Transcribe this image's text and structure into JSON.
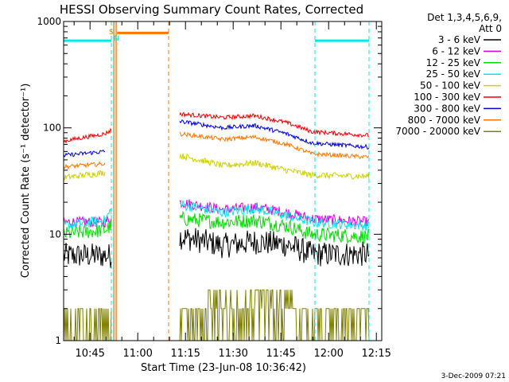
{
  "chart_data": {
    "type": "line",
    "title": "HESSI Observing Summary Count Rates, Corrected",
    "xlabel": "Start Time (23-Jun-08 10:36:42)",
    "ylabel": "Corrected Count Rate (s⁻¹ detector⁻¹)",
    "yscale": "log",
    "ylim": [
      1,
      1000
    ],
    "xlim_minutes": [
      0,
      100
    ],
    "yticks": [
      {
        "label": "1",
        "value": 1
      },
      {
        "label": "10",
        "value": 10
      },
      {
        "label": "100",
        "value": 100
      },
      {
        "label": "1000",
        "value": 1000
      }
    ],
    "xticks": [
      {
        "label": "10:45",
        "t": 8.3
      },
      {
        "label": "11:00",
        "t": 23.3
      },
      {
        "label": "11:15",
        "t": 38.3
      },
      {
        "label": "11:30",
        "t": 53.3
      },
      {
        "label": "11:45",
        "t": 68.3
      },
      {
        "label": "12:00",
        "t": 83.3
      },
      {
        "label": "12:15",
        "t": 98.3
      }
    ],
    "legend": {
      "header": [
        "Det 1,3,4,5,6,9,",
        "Att 0"
      ],
      "position": "right"
    },
    "series": [
      {
        "name": "3 - 6 keV",
        "color": "#000000",
        "pre": [
          [
            0,
            6.3
          ],
          [
            15,
            6.3
          ]
        ],
        "post": [
          [
            36.5,
            9.5
          ],
          [
            50,
            7.8
          ],
          [
            60,
            8.5
          ],
          [
            70,
            8.0
          ],
          [
            78,
            6.5
          ],
          [
            96,
            6.5
          ]
        ],
        "noise": 0.12
      },
      {
        "name": "6 - 12 keV",
        "color": "#dd00dd",
        "pre": [
          [
            0,
            13
          ],
          [
            13,
            13
          ],
          [
            15,
            14
          ]
        ],
        "post": [
          [
            36.5,
            20
          ],
          [
            50,
            17
          ],
          [
            60,
            18
          ],
          [
            70,
            16
          ],
          [
            78,
            14
          ],
          [
            96,
            13
          ]
        ],
        "noise": 0.05
      },
      {
        "name": "12 - 25 keV",
        "color": "#00dd00",
        "pre": [
          [
            0,
            10
          ],
          [
            13,
            11
          ],
          [
            15,
            12
          ]
        ],
        "post": [
          [
            36.5,
            14
          ],
          [
            50,
            13
          ],
          [
            60,
            13.5
          ],
          [
            70,
            12
          ],
          [
            78,
            10
          ],
          [
            96,
            9.5
          ]
        ],
        "noise": 0.07
      },
      {
        "name": "25 - 50 keV",
        "color": "#00e8e8",
        "pre": [
          [
            0,
            12
          ],
          [
            13,
            13.5
          ],
          [
            15,
            17
          ]
        ],
        "post": [
          [
            36.5,
            19
          ],
          [
            50,
            16
          ],
          [
            60,
            17.5
          ],
          [
            70,
            15
          ],
          [
            78,
            13
          ],
          [
            96,
            12
          ]
        ],
        "noise": 0.05
      },
      {
        "name": "50 - 100 keV",
        "color": "#d0d000",
        "pre": [
          [
            0,
            34
          ],
          [
            13,
            38
          ]
        ],
        "post": [
          [
            36.5,
            55
          ],
          [
            50,
            44
          ],
          [
            60,
            47
          ],
          [
            70,
            40
          ],
          [
            78,
            36
          ],
          [
            96,
            35
          ]
        ],
        "noise": 0.03
      },
      {
        "name": "100 - 300 keV",
        "color": "#ee0000",
        "pre": [
          [
            0,
            75
          ],
          [
            13,
            88
          ],
          [
            15,
            95
          ]
        ],
        "post": [
          [
            36.5,
            135
          ],
          [
            50,
            125
          ],
          [
            60,
            130
          ],
          [
            70,
            112
          ],
          [
            78,
            92
          ],
          [
            96,
            85
          ]
        ],
        "noise": 0.02
      },
      {
        "name": "300 - 800 keV",
        "color": "#0000dd",
        "pre": [
          [
            0,
            55
          ],
          [
            13,
            60
          ]
        ],
        "post": [
          [
            36.5,
            115
          ],
          [
            50,
            100
          ],
          [
            60,
            105
          ],
          [
            70,
            88
          ],
          [
            78,
            72
          ],
          [
            96,
            66
          ]
        ],
        "noise": 0.02
      },
      {
        "name": "800 - 7000 keV",
        "color": "#ff7700",
        "pre": [
          [
            0,
            43
          ],
          [
            13,
            46
          ]
        ],
        "post": [
          [
            36.5,
            88
          ],
          [
            50,
            78
          ],
          [
            60,
            82
          ],
          [
            70,
            70
          ],
          [
            78,
            57
          ],
          [
            96,
            53
          ]
        ],
        "noise": 0.02
      },
      {
        "name": "7000 - 20000 keV",
        "color": "#808000",
        "levels": [
          1,
          2,
          3
        ],
        "pre_t": [
          0,
          15
        ],
        "post_t": [
          36.5,
          96
        ]
      }
    ],
    "annotations": [
      {
        "text": "S",
        "color": "#ff7700",
        "t": 15
      },
      {
        "text": "N",
        "color": "#00e8e8",
        "t": 16.5
      }
    ],
    "markers": {
      "attenuator_bars": {
        "color": "#00e8e8",
        "value": 660,
        "ranges": [
          [
            0,
            15
          ],
          [
            79,
            96
          ]
        ]
      },
      "saa_bar": {
        "color": "#ff7700",
        "value": 780,
        "range": [
          16.8,
          33
        ]
      },
      "cyan_vertical_t": [
        0,
        15,
        79,
        96
      ],
      "orange_vertical_t": [
        15.8,
        16.5,
        33
      ]
    },
    "footer_date": "3-Dec-2009 07:21"
  }
}
